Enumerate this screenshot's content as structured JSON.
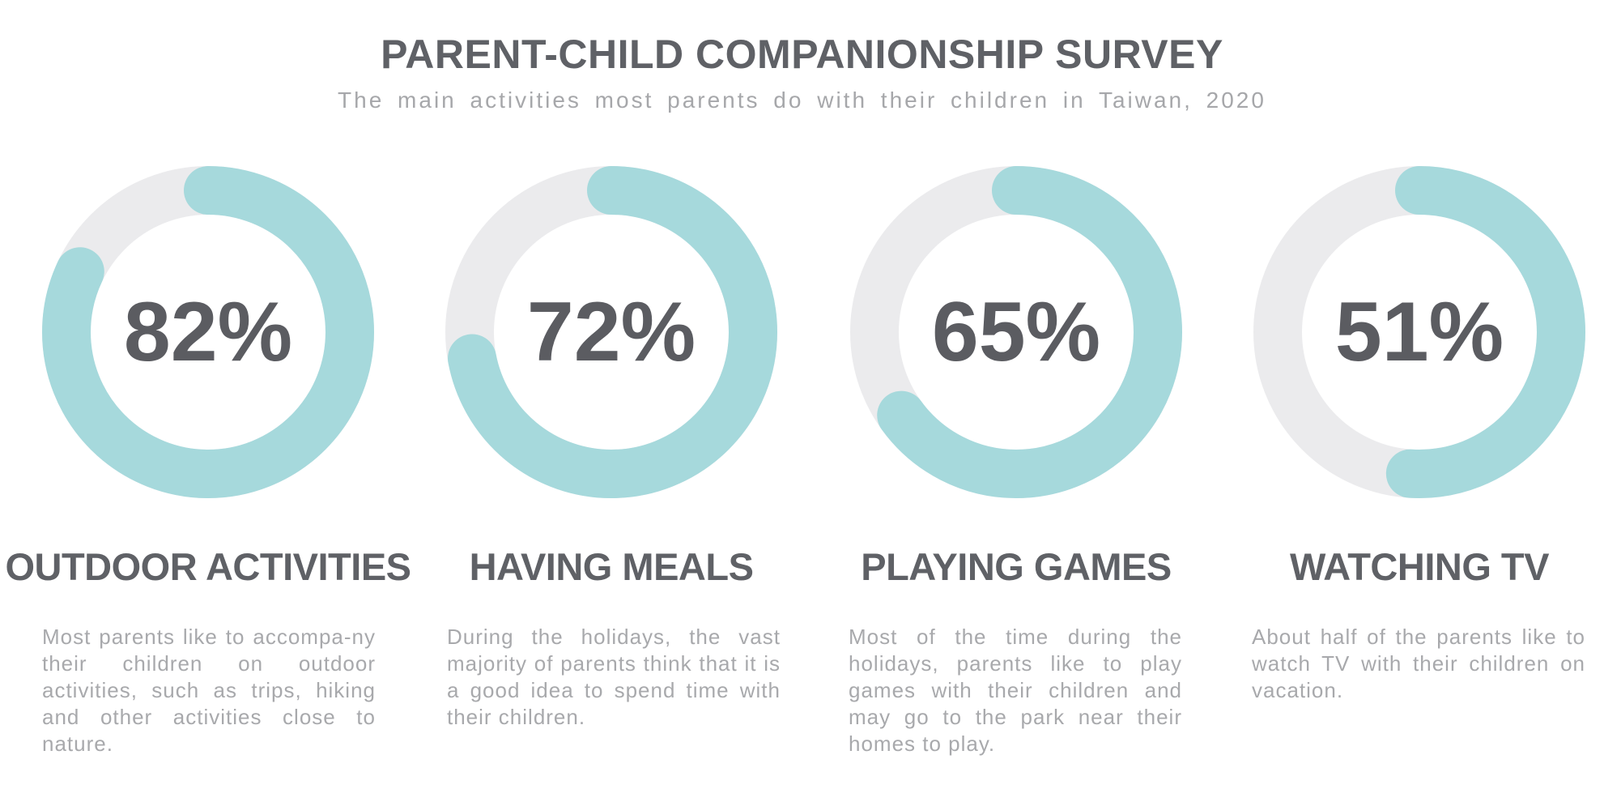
{
  "header": {
    "title": "PARENT-CHILD COMPANIONSHIP SURVEY",
    "subtitle": "The main activities most parents do with their children in Taiwan, 2020"
  },
  "colors": {
    "filled": "#a6d9dc",
    "track": "#ebebed",
    "text_dark": "#5f6166",
    "text_light": "#a8a9ac"
  },
  "chart_data": {
    "type": "pie",
    "title": "PARENT-CHILD COMPANIONSHIP SURVEY",
    "subtitle": "The main activities most parents do with their children in Taiwan, 2020",
    "unit": "%",
    "items": [
      {
        "category": "OUTDOOR ACTIVITIES",
        "value": 82,
        "label": "82%",
        "description": "Most parents like to accompa-ny their children on outdoor activities, such as trips, hiking and other activities close to nature."
      },
      {
        "category": "HAVING MEALS",
        "value": 72,
        "label": "72%",
        "description": "During the holidays, the vast majority of parents think that it is a good idea to spend time with their children."
      },
      {
        "category": "PLAYING GAMES",
        "value": 65,
        "label": "65%",
        "description": "Most of the time during the holidays, parents like to play games with their children and may go to the park near their homes to play."
      },
      {
        "category": "WATCHING TV",
        "value": 51,
        "label": "51%",
        "description": "About half of the parents like to watch TV with their children on vacation."
      }
    ]
  }
}
